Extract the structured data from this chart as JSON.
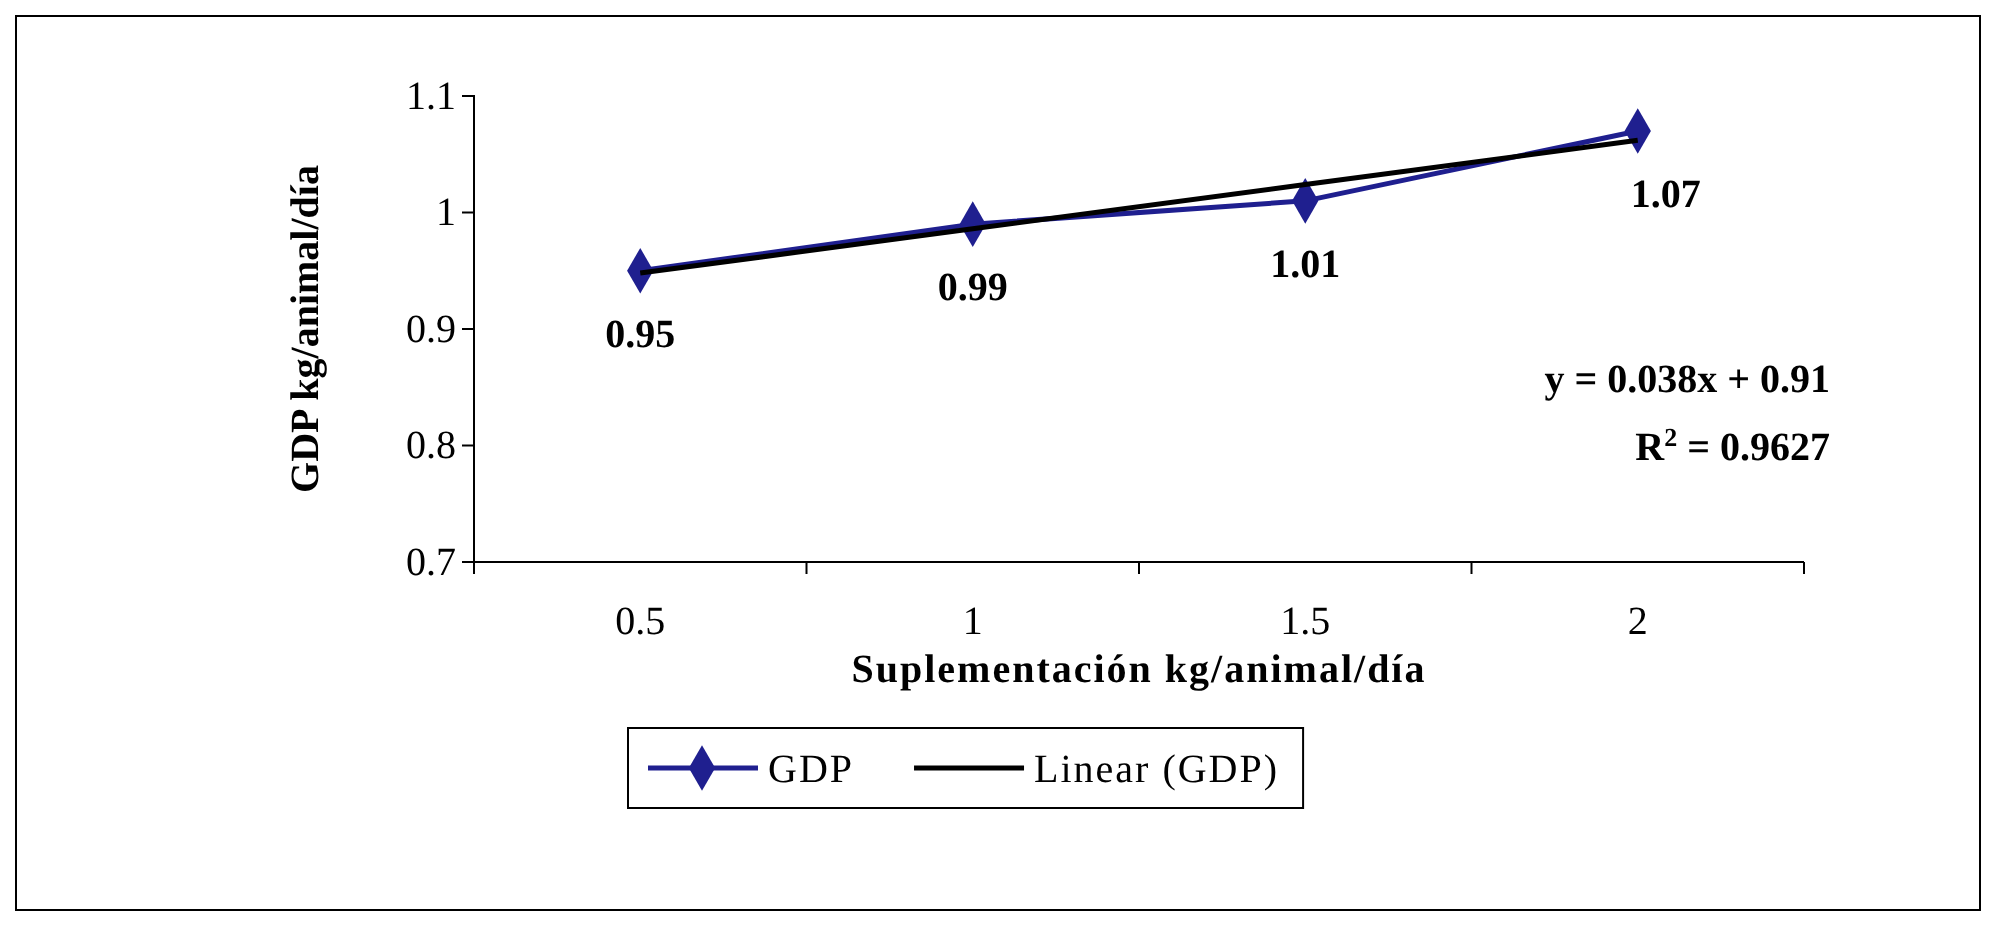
{
  "chart_data": {
    "type": "line",
    "xlabel": "Suplementación kg/animal/día",
    "ylabel": "GDP kg/animal/día",
    "categories": [
      "0.5",
      "1",
      "1.5",
      "2"
    ],
    "series": [
      {
        "name": "GDP",
        "color": "#1f1f8f",
        "values": [
          0.95,
          0.99,
          1.01,
          1.07
        ],
        "marker": "diamond",
        "value_labels": [
          "0.95",
          "0.99",
          "1.01",
          "1.07"
        ]
      },
      {
        "name": "Linear (GDP)",
        "color": "#000000",
        "values": [
          0.948,
          0.986,
          1.024,
          1.062
        ],
        "marker": "none"
      }
    ],
    "ylim": [
      0.7,
      1.1
    ],
    "yticks": [
      0.7,
      0.8,
      0.9,
      1,
      1.1
    ],
    "grid": false,
    "legend": "bottom",
    "annotations": [
      "y = 0.038x + 0.91",
      "R$^{2}$ = 0.9627"
    ]
  }
}
